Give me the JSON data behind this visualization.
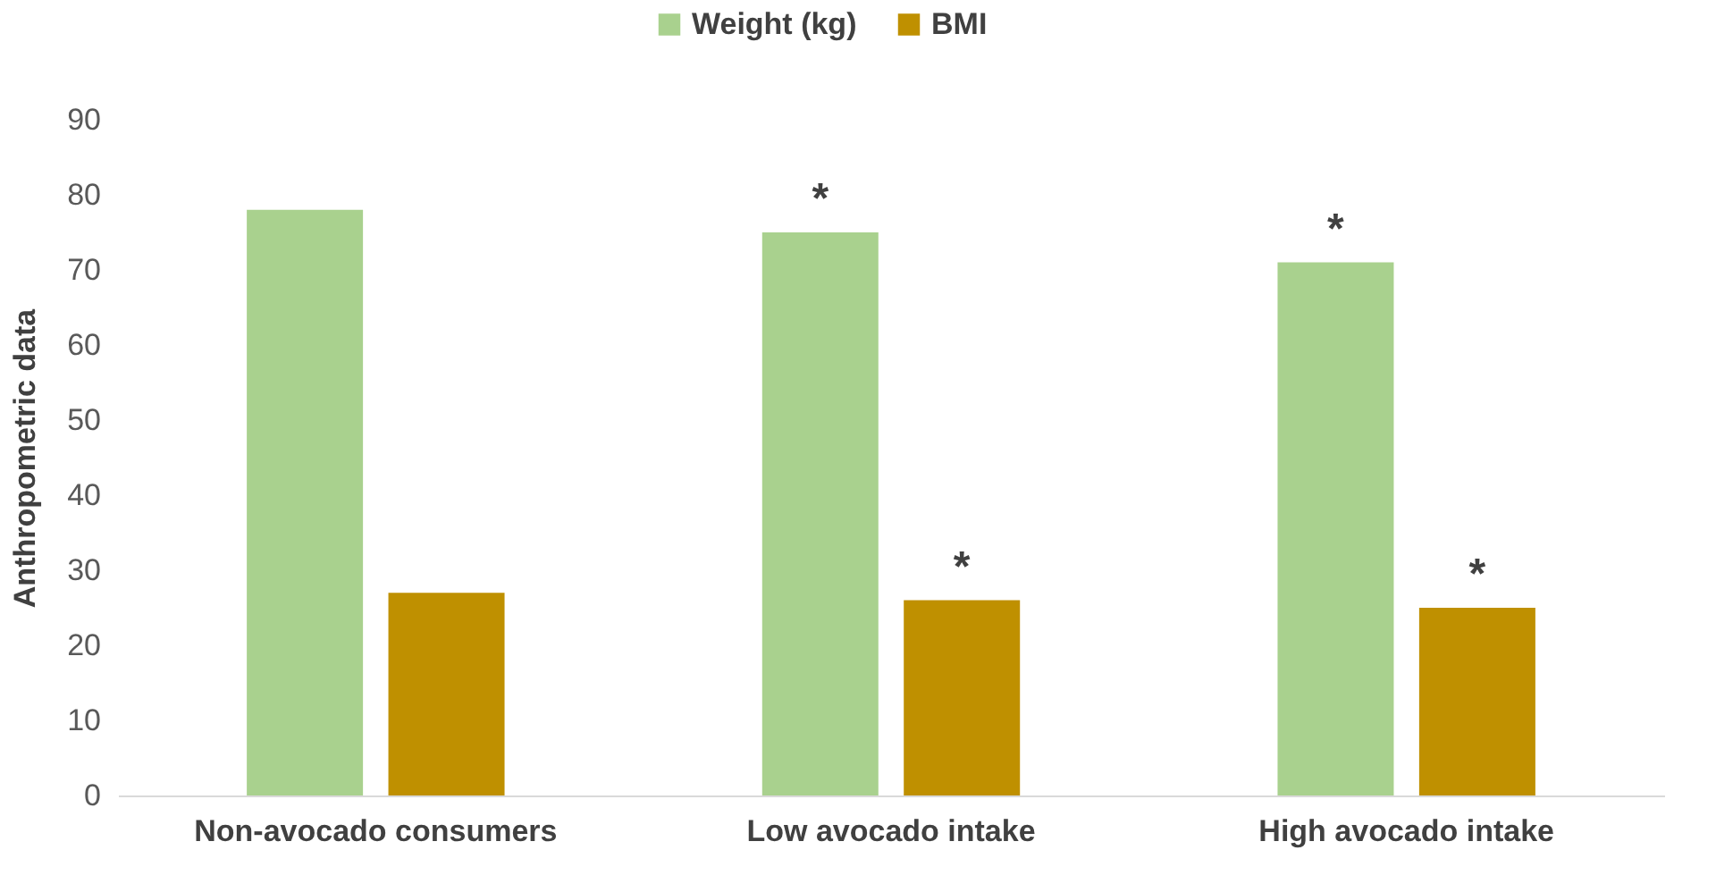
{
  "chart_data": {
    "type": "bar",
    "ylabel": "Anthropometric data",
    "categories": [
      "Non-avocado consumers",
      "Low avocado intake",
      "High avocado intake"
    ],
    "series": [
      {
        "name": "Weight (kg)",
        "color": "#a9d18e",
        "values": [
          78,
          75,
          71
        ]
      },
      {
        "name": "BMI",
        "color": "#bf9000",
        "values": [
          27,
          26,
          25
        ]
      }
    ],
    "ylim": [
      0,
      90
    ],
    "yticks": [
      0,
      10,
      20,
      30,
      40,
      50,
      60,
      70,
      80,
      90
    ],
    "grid": false,
    "legend": "top",
    "annotations": [
      "*",
      "*",
      "*",
      "*"
    ]
  }
}
